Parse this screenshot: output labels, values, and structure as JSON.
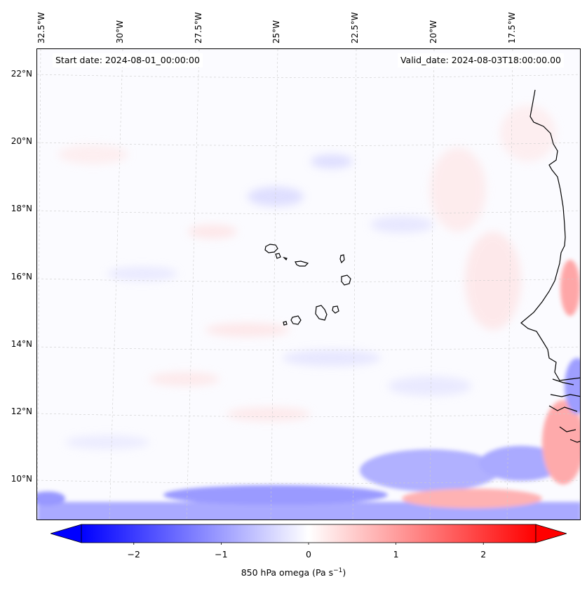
{
  "map": {
    "title_left": "Start date: 2024-08-01_00:00:00",
    "title_right": "Valid_date: 2024-08-03T18:00:00.00",
    "longitude_labels": [
      "32.5°W",
      "30°W",
      "27.5°W",
      "25°W",
      "22.5°W",
      "20°W",
      "17.5°W"
    ],
    "latitude_labels": [
      "22°N",
      "20°N",
      "18°N",
      "16°N",
      "14°N",
      "12°N",
      "10°N"
    ],
    "variable": "850 hPa omega",
    "coastline_color": "#000000",
    "gridline_color": "#cccccc"
  },
  "colorbar": {
    "label_text": "850 hPa omega (Pa s",
    "label_unit_exp": "−1",
    "label_close": ")",
    "ticks": [
      "−2",
      "−1",
      "0",
      "1",
      "2"
    ],
    "range": [
      -2.6,
      2.6
    ],
    "colormap": "bwr",
    "extend": "both",
    "neg_color": "#0000ff",
    "mid_color": "#ffffff",
    "pos_color": "#ff0000"
  }
}
